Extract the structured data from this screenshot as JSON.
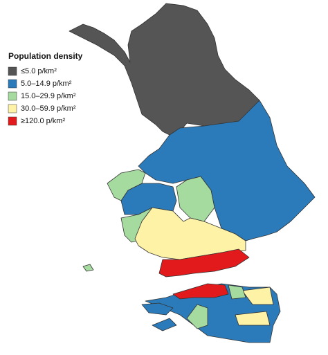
{
  "legend": {
    "title": "Population density",
    "items": [
      {
        "label": "≤5.0 p/km²",
        "color": "#555555"
      },
      {
        "label": "5.0–14.9 p/km²",
        "color": "#2b7bba"
      },
      {
        "label": "15.0–29.9 p/km²",
        "color": "#a6dba0"
      },
      {
        "label": "30.0–59.9 p/km²",
        "color": "#fdf2a5"
      },
      {
        "label": "≥120.0 p/km²",
        "color": "#e31a1c"
      }
    ]
  }
}
